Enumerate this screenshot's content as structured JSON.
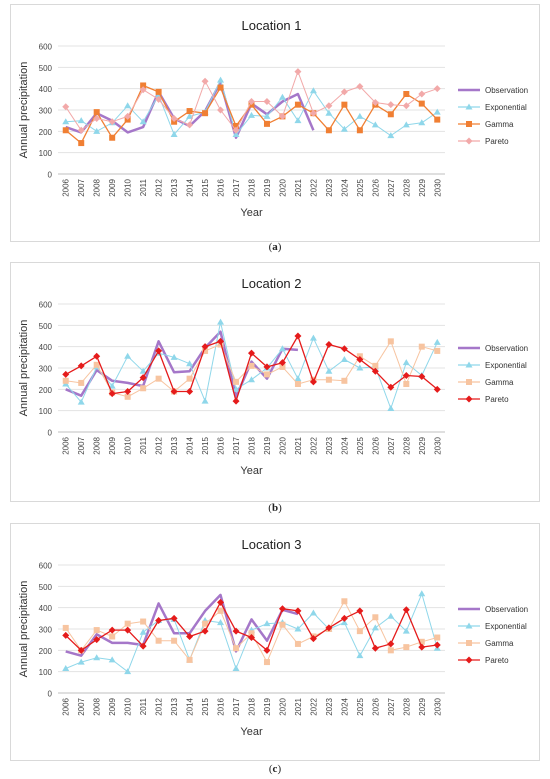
{
  "panels": [
    {
      "caption_prefix": "(",
      "caption_letter": "a",
      "caption_suffix": ")"
    },
    {
      "caption_prefix": "(",
      "caption_letter": "b",
      "caption_suffix": ")"
    },
    {
      "caption_prefix": "(",
      "caption_letter": "c",
      "caption_suffix": ")"
    }
  ],
  "chart_data": [
    {
      "type": "line",
      "title": "Location 1",
      "xlabel": "Year",
      "ylabel": "Annual precipitation",
      "ylim": [
        0,
        600
      ],
      "yticks": [
        0,
        100,
        200,
        300,
        400,
        500,
        600
      ],
      "x": [
        "2006",
        "2007",
        "2008",
        "2009",
        "2010",
        "2011",
        "2012",
        "2013",
        "2014",
        "2015",
        "2016",
        "2017",
        "2018",
        "2019",
        "2020",
        "2021",
        "2022",
        "2023",
        "2024",
        "2025",
        "2026",
        "2027",
        "2028",
        "2029",
        "2030"
      ],
      "grid": true,
      "legend_position": "right",
      "series": [
        {
          "name": "Observation",
          "color": "#a577c9",
          "style": "thick",
          "values": [
            220,
            195,
            285,
            250,
            195,
            220,
            385,
            260,
            225,
            295,
            430,
            170,
            330,
            280,
            340,
            375,
            205,
            null,
            null,
            null,
            null,
            null,
            null,
            null,
            null
          ]
        },
        {
          "name": "Exponential",
          "color": "#8fd7ea",
          "style": "tri",
          "values": [
            245,
            250,
            200,
            240,
            320,
            245,
            370,
            185,
            270,
            290,
            440,
            185,
            275,
            270,
            360,
            250,
            390,
            285,
            210,
            270,
            230,
            180,
            230,
            240,
            290
          ]
        },
        {
          "name": "Gamma",
          "color": "#f07f33",
          "style": "square",
          "values": [
            205,
            145,
            290,
            170,
            255,
            415,
            385,
            245,
            295,
            285,
            405,
            225,
            325,
            235,
            270,
            325,
            285,
            205,
            325,
            205,
            325,
            280,
            375,
            330,
            255
          ]
        },
        {
          "name": "Pareto",
          "color": "#f2a9a9",
          "style": "diamond",
          "values": [
            315,
            205,
            260,
            245,
            270,
            395,
            350,
            260,
            230,
            435,
            300,
            205,
            340,
            340,
            270,
            480,
            285,
            320,
            385,
            410,
            335,
            325,
            320,
            375,
            400
          ]
        }
      ]
    },
    {
      "type": "line",
      "title": "Location 2",
      "xlabel": "Year",
      "ylabel": "Annual precipitation",
      "ylim": [
        0,
        600
      ],
      "yticks": [
        0,
        100,
        200,
        300,
        400,
        500,
        600
      ],
      "x": [
        "2006",
        "2007",
        "2008",
        "2009",
        "2010",
        "2011",
        "2012",
        "2013",
        "2014",
        "2015",
        "2016",
        "2017",
        "2018",
        "2019",
        "2020",
        "2021",
        "2022",
        "2023",
        "2024",
        "2025",
        "2026",
        "2027",
        "2028",
        "2029",
        "2030"
      ],
      "grid": true,
      "legend_position": "right",
      "series": [
        {
          "name": "Observation",
          "color": "#a577c9",
          "style": "thick",
          "values": [
            200,
            170,
            290,
            240,
            230,
            215,
            425,
            280,
            285,
            395,
            470,
            165,
            330,
            250,
            390,
            385,
            null,
            null,
            null,
            null,
            null,
            null,
            null,
            null,
            null
          ]
        },
        {
          "name": "Exponential",
          "color": "#8fd7ea",
          "style": "tri",
          "values": [
            225,
            140,
            305,
            215,
            355,
            285,
            370,
            350,
            320,
            145,
            515,
            200,
            245,
            300,
            390,
            250,
            440,
            285,
            340,
            300,
            305,
            110,
            325,
            265,
            420
          ]
        },
        {
          "name": "Gamma",
          "color": "#f7c4a0",
          "style": "square",
          "values": [
            240,
            230,
            315,
            185,
            165,
            205,
            250,
            190,
            250,
            380,
            410,
            235,
            310,
            270,
            305,
            225,
            245,
            245,
            240,
            355,
            310,
            425,
            225,
            400,
            380
          ]
        },
        {
          "name": "Pareto",
          "color": "#e51b1b",
          "style": "diamond",
          "values": [
            270,
            310,
            355,
            180,
            190,
            255,
            380,
            190,
            190,
            400,
            425,
            145,
            370,
            305,
            325,
            450,
            235,
            410,
            390,
            340,
            285,
            210,
            265,
            260,
            200
          ]
        }
      ]
    },
    {
      "type": "line",
      "title": "Location 3",
      "xlabel": "Year",
      "ylabel": "Annual precipitation",
      "ylim": [
        0,
        600
      ],
      "yticks": [
        0,
        100,
        200,
        300,
        400,
        500,
        600
      ],
      "x": [
        "2006",
        "2007",
        "2008",
        "2009",
        "2010",
        "2011",
        "2012",
        "2013",
        "2014",
        "2015",
        "2016",
        "2017",
        "2018",
        "2019",
        "2020",
        "2021",
        "2022",
        "2023",
        "2024",
        "2025",
        "2026",
        "2027",
        "2028",
        "2029",
        "2030"
      ],
      "grid": true,
      "legend_position": "right",
      "series": [
        {
          "name": "Observation",
          "color": "#a577c9",
          "style": "thick",
          "values": [
            195,
            175,
            275,
            235,
            235,
            225,
            420,
            280,
            280,
            385,
            460,
            195,
            345,
            245,
            390,
            370,
            null,
            null,
            null,
            null,
            null,
            null,
            null,
            null,
            null
          ]
        },
        {
          "name": "Exponential",
          "color": "#8fd7ea",
          "style": "tri",
          "values": [
            115,
            145,
            165,
            155,
            100,
            285,
            340,
            345,
            155,
            340,
            330,
            115,
            295,
            325,
            330,
            300,
            375,
            300,
            330,
            175,
            305,
            360,
            290,
            465,
            210
          ]
        },
        {
          "name": "Gamma",
          "color": "#f7c4a0",
          "style": "square",
          "values": [
            305,
            200,
            295,
            265,
            325,
            335,
            245,
            245,
            155,
            325,
            385,
            210,
            280,
            145,
            320,
            230,
            265,
            300,
            430,
            290,
            355,
            200,
            215,
            240,
            260
          ]
        },
        {
          "name": "Pareto",
          "color": "#e51b1b",
          "style": "diamond",
          "values": [
            270,
            200,
            250,
            295,
            295,
            220,
            340,
            350,
            265,
            290,
            425,
            290,
            260,
            200,
            395,
            385,
            255,
            305,
            350,
            385,
            210,
            230,
            390,
            215,
            225
          ]
        }
      ]
    }
  ]
}
